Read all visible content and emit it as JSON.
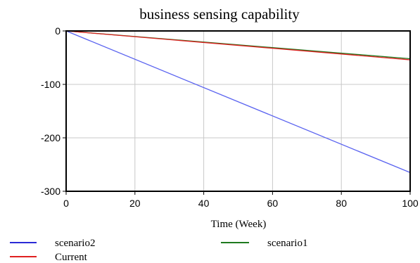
{
  "chart_data": {
    "type": "line",
    "title": "business sensing capability",
    "xlabel": "Time (Week)",
    "ylabel": "",
    "xlim": [
      0,
      100
    ],
    "ylim": [
      -300,
      0
    ],
    "xticks": [
      0,
      20,
      40,
      60,
      80,
      100
    ],
    "yticks": [
      0,
      -100,
      -200,
      -300
    ],
    "grid": true,
    "legend_position": "bottom",
    "series": [
      {
        "name": "scenario2",
        "color": "#5a63f0",
        "x": [
          0,
          100
        ],
        "values": [
          0,
          -265
        ]
      },
      {
        "name": "scenario1",
        "color": "#1f7a1f",
        "x": [
          0,
          100
        ],
        "values": [
          0,
          -52
        ]
      },
      {
        "name": "Current",
        "color": "#e02020",
        "x": [
          0,
          100
        ],
        "values": [
          0,
          -54
        ]
      }
    ],
    "legend": [
      {
        "name": "scenario2",
        "color": "#2b2bd6"
      },
      {
        "name": "scenario1",
        "color": "#1f7a1f"
      },
      {
        "name": "Current",
        "color": "#e02020"
      }
    ]
  }
}
